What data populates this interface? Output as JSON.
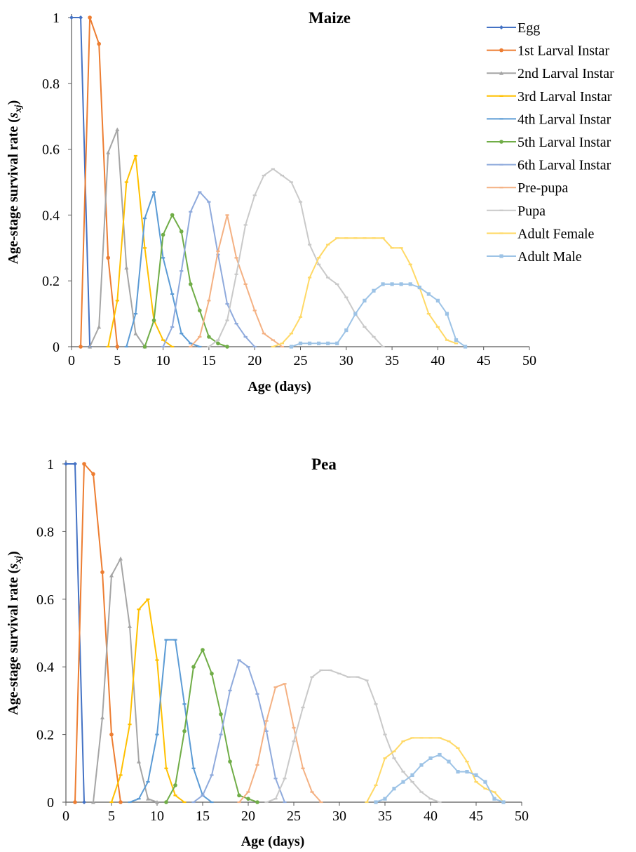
{
  "legend": {
    "items": [
      {
        "name": "Egg",
        "color": "#4472C4",
        "marker": "diamond"
      },
      {
        "name": "1st Larval Instar",
        "color": "#ED7D31",
        "marker": "circle"
      },
      {
        "name": "2nd Larval Instar",
        "color": "#A5A5A5",
        "marker": "triangle"
      },
      {
        "name": "3rd Larval Instar",
        "color": "#FFC000",
        "marker": "dash"
      },
      {
        "name": "4th Larval Instar",
        "color": "#5B9BD5",
        "marker": "dash"
      },
      {
        "name": "5th Larval Instar",
        "color": "#70AD47",
        "marker": "circle"
      },
      {
        "name": "6th Larval Instar",
        "color": "#8FAADC",
        "marker": "dash"
      },
      {
        "name": "Pre-pupa",
        "color": "#F4B183",
        "marker": "dash"
      },
      {
        "name": "Pupa",
        "color": "#C9C9C9",
        "marker": "dash"
      },
      {
        "name": "Adult Female",
        "color": "#FFD966",
        "marker": "dash"
      },
      {
        "name": "Adult Male",
        "color": "#9DC3E6",
        "marker": "square"
      }
    ]
  },
  "chart_data": [
    {
      "type": "line",
      "title": "Maize",
      "xlabel": "Age (days)",
      "ylabel_main": "Age-stage survival rate (",
      "ylabel_sym": "s",
      "ylabel_sub": "xj",
      "ylabel_close": ")",
      "xlim": [
        0,
        50
      ],
      "ylim": [
        0,
        1
      ],
      "xticks": [
        0,
        5,
        10,
        15,
        20,
        25,
        30,
        35,
        40,
        45,
        50
      ],
      "yticks": [
        0,
        0.2,
        0.4,
        0.6,
        0.8,
        1
      ],
      "ytick_labels": [
        "0",
        "0.2",
        "0.4",
        "0.6",
        "0.8",
        "1"
      ],
      "legend": "right",
      "series": [
        {
          "name": "Egg",
          "x": [
            0,
            1,
            2
          ],
          "y": [
            1,
            1,
            0
          ]
        },
        {
          "name": "1st Larval Instar",
          "x": [
            1,
            2,
            3,
            4,
            5
          ],
          "y": [
            0,
            1,
            0.92,
            0.27,
            0
          ]
        },
        {
          "name": "2nd Larval Instar",
          "x": [
            2,
            3,
            4,
            5,
            6,
            7,
            8
          ],
          "y": [
            0,
            0.06,
            0.59,
            0.66,
            0.24,
            0.04,
            0
          ]
        },
        {
          "name": "3rd Larval Instar",
          "x": [
            4,
            5,
            6,
            7,
            8,
            9,
            10,
            11
          ],
          "y": [
            0,
            0.14,
            0.5,
            0.58,
            0.3,
            0.08,
            0.02,
            0
          ]
        },
        {
          "name": "4th Larval Instar",
          "x": [
            6,
            7,
            8,
            9,
            10,
            11,
            12,
            13,
            14
          ],
          "y": [
            0,
            0.1,
            0.39,
            0.47,
            0.27,
            0.16,
            0.04,
            0.01,
            0
          ]
        },
        {
          "name": "5th Larval Instar",
          "x": [
            8,
            9,
            10,
            11,
            12,
            13,
            14,
            15,
            16,
            17
          ],
          "y": [
            0,
            0.08,
            0.34,
            0.4,
            0.35,
            0.19,
            0.11,
            0.03,
            0.01,
            0
          ]
        },
        {
          "name": "6th Larval Instar",
          "x": [
            10,
            11,
            12,
            13,
            14,
            15,
            16,
            17,
            18,
            19,
            20
          ],
          "y": [
            0,
            0.06,
            0.23,
            0.41,
            0.47,
            0.44,
            0.28,
            0.13,
            0.07,
            0.03,
            0
          ]
        },
        {
          "name": "Pre-pupa",
          "x": [
            13,
            14,
            15,
            16,
            17,
            18,
            19,
            20,
            21,
            22,
            23
          ],
          "y": [
            0,
            0.03,
            0.14,
            0.29,
            0.4,
            0.27,
            0.19,
            0.11,
            0.04,
            0.02,
            0
          ]
        },
        {
          "name": "Pupa",
          "x": [
            15,
            16,
            17,
            18,
            19,
            20,
            21,
            22,
            23,
            24,
            25,
            26,
            27,
            28,
            29,
            30,
            31,
            32,
            33,
            34
          ],
          "y": [
            0,
            0.02,
            0.08,
            0.22,
            0.37,
            0.46,
            0.52,
            0.54,
            0.52,
            0.5,
            0.44,
            0.31,
            0.25,
            0.21,
            0.19,
            0.15,
            0.1,
            0.06,
            0.03,
            0
          ]
        },
        {
          "name": "Adult Female",
          "x": [
            22,
            23,
            24,
            25,
            26,
            27,
            28,
            29,
            30,
            31,
            32,
            33,
            34,
            35,
            36,
            37,
            38,
            39,
            40,
            41,
            42
          ],
          "y": [
            0,
            0.01,
            0.04,
            0.09,
            0.21,
            0.27,
            0.31,
            0.33,
            0.33,
            0.33,
            0.33,
            0.33,
            0.33,
            0.3,
            0.3,
            0.25,
            0.18,
            0.1,
            0.06,
            0.02,
            0.01
          ]
        },
        {
          "name": "Adult Male",
          "x": [
            24,
            25,
            26,
            27,
            28,
            29,
            30,
            31,
            32,
            33,
            34,
            35,
            36,
            37,
            38,
            39,
            40,
            41,
            42,
            43
          ],
          "y": [
            0,
            0.01,
            0.01,
            0.01,
            0.01,
            0.01,
            0.05,
            0.1,
            0.14,
            0.17,
            0.19,
            0.19,
            0.19,
            0.19,
            0.18,
            0.16,
            0.14,
            0.1,
            0.02,
            0
          ]
        }
      ]
    },
    {
      "type": "line",
      "title": "Pea",
      "xlabel": "Age (days)",
      "ylabel_main": "Age-stage survival rate (",
      "ylabel_sym": "s",
      "ylabel_sub": "xj",
      "ylabel_close": ")",
      "xlim": [
        0,
        50
      ],
      "ylim": [
        0,
        1
      ],
      "xticks": [
        0,
        5,
        10,
        15,
        20,
        25,
        30,
        35,
        40,
        45,
        50
      ],
      "yticks": [
        0,
        0.2,
        0.4,
        0.6,
        0.8,
        1
      ],
      "ytick_labels": [
        "0",
        "0.2",
        "0.4",
        "0.6",
        "0.8",
        "1"
      ],
      "series": [
        {
          "name": "Egg",
          "x": [
            0,
            1,
            2
          ],
          "y": [
            1,
            1,
            0
          ]
        },
        {
          "name": "1st Larval Instar",
          "x": [
            1,
            2,
            3,
            4,
            5,
            6
          ],
          "y": [
            0,
            1,
            0.97,
            0.68,
            0.2,
            0
          ]
        },
        {
          "name": "2nd Larval Instar",
          "x": [
            3,
            4,
            5,
            6,
            7,
            8,
            9,
            10
          ],
          "y": [
            0,
            0.25,
            0.67,
            0.72,
            0.52,
            0.12,
            0.01,
            0
          ]
        },
        {
          "name": "3rd Larval Instar",
          "x": [
            5,
            6,
            7,
            8,
            9,
            10,
            11,
            12,
            13
          ],
          "y": [
            0,
            0.08,
            0.23,
            0.57,
            0.6,
            0.42,
            0.1,
            0.02,
            0
          ]
        },
        {
          "name": "4th Larval Instar",
          "x": [
            7,
            8,
            9,
            10,
            11,
            12,
            13,
            14,
            15,
            16
          ],
          "y": [
            0,
            0.01,
            0.06,
            0.2,
            0.48,
            0.48,
            0.29,
            0.1,
            0.02,
            0
          ]
        },
        {
          "name": "5th Larval Instar",
          "x": [
            11,
            12,
            13,
            14,
            15,
            16,
            17,
            18,
            19,
            20,
            21
          ],
          "y": [
            0,
            0.05,
            0.21,
            0.4,
            0.45,
            0.38,
            0.26,
            0.12,
            0.02,
            0.01,
            0
          ]
        },
        {
          "name": "6th Larval Instar",
          "x": [
            14,
            15,
            16,
            17,
            18,
            19,
            20,
            21,
            22,
            23,
            24
          ],
          "y": [
            0,
            0.02,
            0.08,
            0.2,
            0.33,
            0.42,
            0.4,
            0.32,
            0.21,
            0.07,
            0
          ]
        },
        {
          "name": "Pre-pupa",
          "x": [
            19,
            20,
            21,
            22,
            23,
            24,
            25,
            26,
            27,
            28
          ],
          "y": [
            0,
            0.03,
            0.11,
            0.24,
            0.34,
            0.35,
            0.22,
            0.1,
            0.03,
            0
          ]
        },
        {
          "name": "Pupa",
          "x": [
            22,
            23,
            24,
            25,
            26,
            27,
            28,
            29,
            30,
            31,
            32,
            33,
            34,
            35,
            36,
            37,
            38,
            39,
            40,
            41
          ],
          "y": [
            0,
            0.01,
            0.07,
            0.18,
            0.28,
            0.37,
            0.39,
            0.39,
            0.38,
            0.37,
            0.37,
            0.36,
            0.29,
            0.2,
            0.13,
            0.09,
            0.06,
            0.03,
            0.01,
            0
          ]
        },
        {
          "name": "Adult Female",
          "x": [
            33,
            34,
            35,
            36,
            37,
            38,
            39,
            40,
            41,
            42,
            43,
            44,
            45,
            46,
            47,
            48
          ],
          "y": [
            0,
            0.05,
            0.13,
            0.15,
            0.18,
            0.19,
            0.19,
            0.19,
            0.19,
            0.18,
            0.16,
            0.12,
            0.06,
            0.04,
            0.03,
            0
          ]
        },
        {
          "name": "Adult Male",
          "x": [
            34,
            35,
            36,
            37,
            38,
            39,
            40,
            41,
            42,
            43,
            44,
            45,
            46,
            47,
            48
          ],
          "y": [
            0,
            0.01,
            0.04,
            0.06,
            0.08,
            0.11,
            0.13,
            0.14,
            0.12,
            0.09,
            0.09,
            0.08,
            0.06,
            0.01,
            0
          ]
        }
      ]
    }
  ]
}
